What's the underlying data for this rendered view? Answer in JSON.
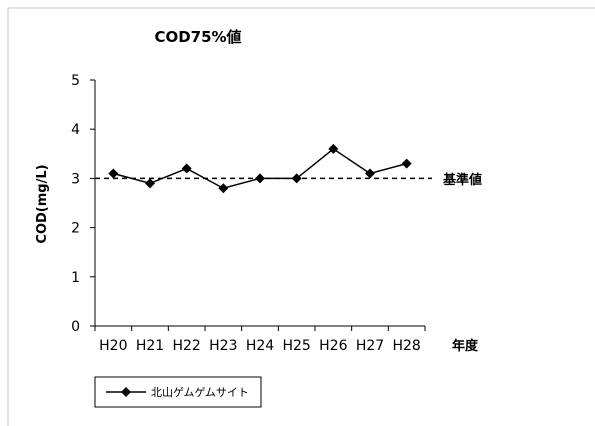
{
  "chart_data": {
    "type": "line",
    "title": "COD75%値",
    "ylabel": "COD(mg/L)",
    "xlabel": "年度",
    "categories": [
      "H20",
      "H21",
      "H22",
      "H23",
      "H24",
      "H25",
      "H26",
      "H27",
      "H28"
    ],
    "series": [
      {
        "name": "北山ゲムゲムサイト",
        "values": [
          3.1,
          2.9,
          3.2,
          2.8,
          3.0,
          3.0,
          3.6,
          3.1,
          3.3
        ],
        "color": "#000000",
        "marker": "diamond"
      }
    ],
    "reference_line": {
      "label": "基準値",
      "value": 3,
      "style": "dashed"
    },
    "ylim": [
      0,
      5
    ],
    "yticks": [
      "0",
      "1",
      "2",
      "3",
      "4",
      "5"
    ],
    "grid": false,
    "legend_position": "bottom-left"
  }
}
